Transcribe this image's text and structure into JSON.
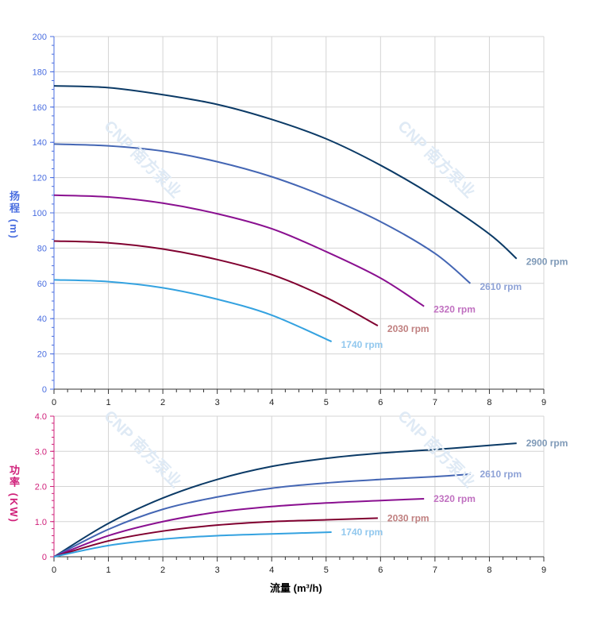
{
  "chart_data": [
    {
      "type": "line",
      "ylabel": "扬程 (m)",
      "xlim": [
        0,
        9
      ],
      "ylim": [
        0,
        200
      ],
      "xticks": [
        0,
        1,
        2,
        3,
        4,
        5,
        6,
        7,
        8,
        9
      ],
      "yticks": [
        0,
        20,
        40,
        60,
        80,
        100,
        120,
        140,
        160,
        180,
        200
      ],
      "grid": true,
      "axis_color": "#4a6ee0",
      "series": [
        {
          "name": "2900 rpm",
          "color": "#0b3a66",
          "label_color": "#7f9ab8",
          "x": [
            0,
            1,
            2,
            3,
            4,
            5,
            6,
            7,
            8,
            8.5
          ],
          "y": [
            172,
            171,
            167,
            161.5,
            153,
            142,
            127,
            109,
            88,
            74
          ]
        },
        {
          "name": "2610 rpm",
          "color": "#4466b4",
          "label_color": "#8ea2d6",
          "x": [
            0,
            1,
            2,
            3,
            4,
            5,
            6,
            7,
            7.65
          ],
          "y": [
            139,
            138,
            135,
            129,
            120.5,
            109,
            95,
            77,
            60
          ]
        },
        {
          "name": "2320 rpm",
          "color": "#8a1090",
          "label_color": "#c070c0",
          "x": [
            0,
            1,
            2,
            3,
            4,
            5,
            6,
            6.8
          ],
          "y": [
            110,
            109,
            105.5,
            99.5,
            91,
            78,
            63,
            47
          ]
        },
        {
          "name": "2030 rpm",
          "color": "#800030",
          "label_color": "#c08080",
          "x": [
            0,
            1,
            2,
            3,
            4,
            5,
            5.95
          ],
          "y": [
            84,
            83,
            79.5,
            73.5,
            65,
            52,
            36
          ]
        },
        {
          "name": "1740 rpm",
          "color": "#34a2e0",
          "label_color": "#92c8ee",
          "x": [
            0,
            1,
            2,
            3,
            4,
            5.1
          ],
          "y": [
            62,
            61,
            57.5,
            51,
            42,
            27
          ]
        }
      ]
    },
    {
      "type": "line",
      "xlabel": "流量 (m³/h)",
      "ylabel": "功率 (KW)",
      "xlim": [
        0,
        9
      ],
      "ylim": [
        0,
        4
      ],
      "xticks": [
        0,
        1,
        2,
        3,
        4,
        5,
        6,
        7,
        8,
        9
      ],
      "yticks": [
        "0",
        "1.0",
        "2.0",
        "3.0",
        "4.0"
      ],
      "grid": true,
      "axis_color": "#d0207a",
      "series": [
        {
          "name": "2900 rpm",
          "color": "#0b3a66",
          "label_color": "#7f9ab8",
          "x": [
            0,
            1,
            2,
            3,
            4,
            5,
            6,
            7,
            8,
            8.5
          ],
          "y": [
            0,
            0.95,
            1.67,
            2.2,
            2.57,
            2.8,
            2.95,
            3.05,
            3.17,
            3.23
          ]
        },
        {
          "name": "2610 rpm",
          "color": "#4466b4",
          "label_color": "#8ea2d6",
          "x": [
            0,
            1,
            2,
            3,
            4,
            5,
            6,
            7,
            7.65
          ],
          "y": [
            0,
            0.78,
            1.35,
            1.7,
            1.95,
            2.1,
            2.2,
            2.28,
            2.35
          ]
        },
        {
          "name": "2320 rpm",
          "color": "#8a1090",
          "label_color": "#c070c0",
          "x": [
            0,
            1,
            2,
            3,
            4,
            5,
            6,
            6.8
          ],
          "y": [
            0,
            0.6,
            1.0,
            1.27,
            1.43,
            1.53,
            1.6,
            1.65
          ]
        },
        {
          "name": "2030 rpm",
          "color": "#800030",
          "label_color": "#c08080",
          "x": [
            0,
            1,
            2,
            3,
            4,
            5,
            5.95
          ],
          "y": [
            0,
            0.45,
            0.73,
            0.9,
            1.0,
            1.05,
            1.1
          ]
        },
        {
          "name": "1740 rpm",
          "color": "#34a2e0",
          "label_color": "#92c8ee",
          "x": [
            0,
            1,
            2,
            3,
            4,
            5.1
          ],
          "y": [
            0,
            0.32,
            0.5,
            0.6,
            0.65,
            0.7
          ]
        }
      ]
    }
  ],
  "watermark": "CNP 南方泵业"
}
